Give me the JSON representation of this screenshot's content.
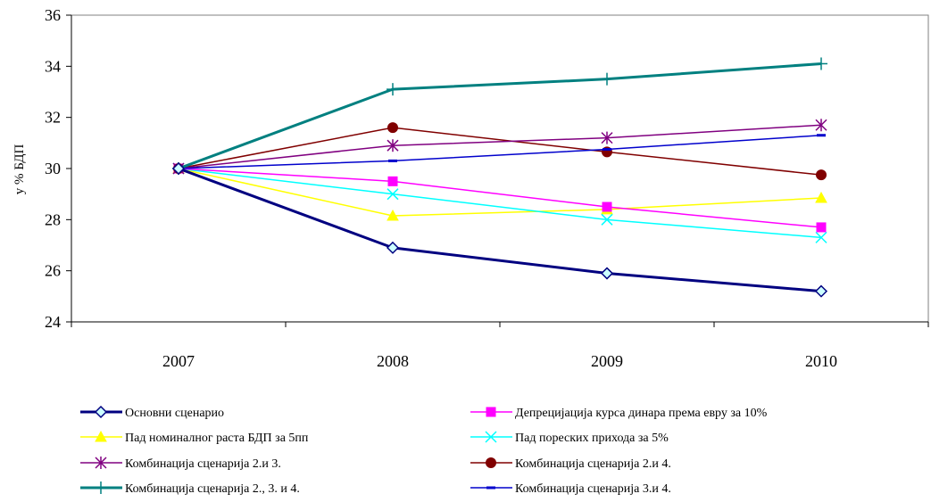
{
  "chart_data": {
    "type": "line",
    "title": "",
    "xlabel": "",
    "ylabel": "у % БДП",
    "categories": [
      "2007",
      "2008",
      "2009",
      "2010"
    ],
    "ylim": [
      24,
      36
    ],
    "yticks": [
      24,
      26,
      28,
      30,
      32,
      34,
      36
    ],
    "grid": false,
    "legend_position": "bottom",
    "series": [
      {
        "name": "Основни сценарио",
        "values": [
          30.0,
          26.9,
          25.9,
          25.2
        ],
        "color": "#000080",
        "marker": "diamond-open"
      },
      {
        "name": "Депрецијација курса динара према евру за 10%",
        "values": [
          30.0,
          29.5,
          28.5,
          27.7
        ],
        "color": "#ff00ff",
        "marker": "square"
      },
      {
        "name": "Пад номиналног раста БДП за 5пп",
        "values": [
          30.0,
          28.15,
          28.4,
          28.85
        ],
        "color": "#ffff00",
        "marker": "triangle"
      },
      {
        "name": "Пад пореских прихода за 5%",
        "values": [
          30.0,
          29.0,
          28.0,
          27.3
        ],
        "color": "#00ffff",
        "marker": "x"
      },
      {
        "name": "Комбинација сценарија 2.и 3.",
        "values": [
          30.0,
          30.9,
          31.2,
          31.7
        ],
        "color": "#800080",
        "marker": "star"
      },
      {
        "name": "Комбинација сценарија 2.и 4.",
        "values": [
          30.0,
          31.6,
          30.65,
          29.75
        ],
        "color": "#800000",
        "marker": "circle"
      },
      {
        "name": "Комбинација сценарија 2., 3. и 4.",
        "values": [
          30.0,
          33.1,
          33.5,
          34.1
        ],
        "color": "#008080",
        "marker": "plus"
      },
      {
        "name": "Комбинација сценарија 3.и 4.",
        "values": [
          30.0,
          30.3,
          30.75,
          31.3
        ],
        "color": "#0000cc",
        "marker": "dash"
      }
    ]
  }
}
